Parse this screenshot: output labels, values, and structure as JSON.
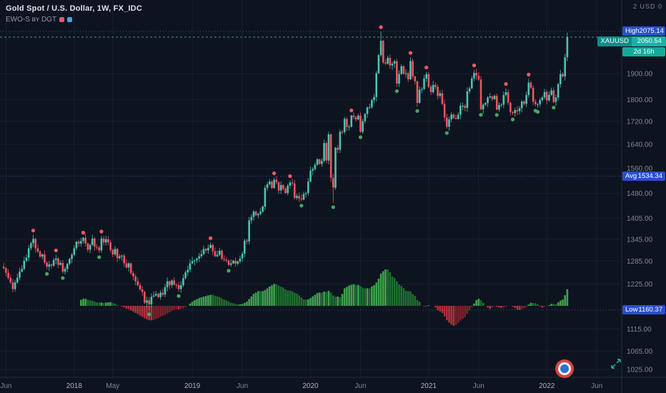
{
  "header": {
    "title": "Gold Spot / U.S. Dollar, 1W, FX_IDC",
    "indicator": "EWO-S ʙʏ DGT",
    "indicator_flags": [
      "#e8556a",
      "#4aa3e0"
    ],
    "top_right": "2  USD 0"
  },
  "colors": {
    "bg": "#0d1420",
    "up": "#4fc2ae",
    "down": "#f0545f",
    "marker_up": "#45a85c",
    "marker_down": "#f55b64",
    "hist_pos": "#3fa24c",
    "hist_pos_dim": "#1f6e31",
    "hist_neg": "#b3303a",
    "hist_neg_dim": "#7c232b",
    "badge_blue": "#2b4ecf",
    "badge_teal": "#17a99c",
    "axis_text": "#7e8694",
    "axis_text_strong": "#a9b0bc",
    "grid": "rgba(151,166,197,0.07)",
    "sep": "rgba(160,172,196,0.16)",
    "level_blue": "rgba(94,120,228,0.55)"
  },
  "axis": {
    "y_ticks": [
      "1900.00",
      "1800.00",
      "1720.00",
      "1640.00",
      "1560.00",
      "1480.00",
      "1405.00",
      "1345.00",
      "1285.00",
      "1225.00",
      "1115.00",
      "1065.00",
      "1025.00"
    ],
    "x_ticks": [
      {
        "label": "Jun",
        "week": 1
      },
      {
        "label": "2018",
        "week": 31
      },
      {
        "label": "May",
        "week": 48
      },
      {
        "label": "2019",
        "week": 83
      },
      {
        "label": "Jun",
        "week": 105
      },
      {
        "label": "2020",
        "week": 135
      },
      {
        "label": "Jun",
        "week": 157
      },
      {
        "label": "2021",
        "week": 187
      },
      {
        "label": "Jun",
        "week": 209
      },
      {
        "label": "2022",
        "week": 239
      },
      {
        "label": "Jun",
        "week": 261
      }
    ],
    "high": {
      "label": "High",
      "value": "2075.14"
    },
    "price": {
      "symbol": "XAUUSD",
      "value": "2050.54"
    },
    "countdown": "2d 16h",
    "avg": {
      "label": "Avg",
      "value": "1534.34"
    },
    "low": {
      "label": "Low",
      "value": "1160.37"
    }
  },
  "chart_data": {
    "type": "candlestick",
    "title": "Gold Spot / U.S. Dollar",
    "symbol": "XAUUSD",
    "timeframe": "1W",
    "source": "FX_IDC",
    "x_range": [
      "Jun 2017",
      "Mar 2022"
    ],
    "ylim": [
      1025,
      2075.14
    ],
    "scale": "log",
    "levels": {
      "high": 2075.14,
      "avg": 1534.34,
      "low": 1160.37,
      "last": 2050.54
    },
    "closes": [
      1266,
      1254,
      1241,
      1229,
      1212,
      1229,
      1241,
      1257,
      1264,
      1286,
      1294,
      1320,
      1334,
      1346,
      1320,
      1311,
      1297,
      1303,
      1281,
      1270,
      1276,
      1273,
      1288,
      1292,
      1275,
      1280,
      1257,
      1264,
      1278,
      1291,
      1302,
      1320,
      1338,
      1333,
      1340,
      1349,
      1333,
      1316,
      1329,
      1347,
      1324,
      1322,
      1314,
      1347,
      1336,
      1345,
      1336,
      1315,
      1303,
      1318,
      1293,
      1298,
      1300,
      1279,
      1268,
      1279,
      1253,
      1245,
      1232,
      1222,
      1211,
      1205,
      1178,
      1184,
      1174,
      1193,
      1196,
      1200,
      1192,
      1203,
      1198,
      1217,
      1232,
      1222,
      1234,
      1223,
      1222,
      1212,
      1222,
      1240,
      1255,
      1262,
      1279,
      1285,
      1287,
      1292,
      1298,
      1304,
      1318,
      1314,
      1321,
      1329,
      1312,
      1298,
      1302,
      1313,
      1291,
      1289,
      1286,
      1275,
      1279,
      1286,
      1278,
      1284,
      1292,
      1305,
      1341,
      1339,
      1399,
      1409,
      1425,
      1414,
      1418,
      1425,
      1440,
      1497,
      1508,
      1517,
      1497,
      1523,
      1515,
      1489,
      1506,
      1494,
      1481,
      1504,
      1514,
      1511,
      1466,
      1472,
      1464,
      1461,
      1478,
      1481,
      1517,
      1552,
      1557,
      1571,
      1589,
      1574,
      1584,
      1644,
      1585,
      1674,
      1529,
      1498,
      1628,
      1621,
      1683,
      1682,
      1729,
      1700,
      1701,
      1741,
      1735,
      1727,
      1741,
      1683,
      1721,
      1747,
      1771,
      1772,
      1798,
      1810,
      1902,
      1975,
      2035,
      1945,
      1940,
      1964,
      1933,
      1940,
      1950,
      1861,
      1899,
      1930,
      1899,
      1902,
      1878,
      1951,
      1889,
      1870,
      1788,
      1838,
      1840,
      1881,
      1898,
      1849,
      1828,
      1856,
      1848,
      1814,
      1824,
      1784,
      1734,
      1701,
      1727,
      1745,
      1732,
      1729,
      1744,
      1777,
      1777,
      1769,
      1831,
      1843,
      1881,
      1903,
      1892,
      1877,
      1764,
      1781,
      1787,
      1808,
      1812,
      1802,
      1814,
      1763,
      1780,
      1781,
      1817,
      1828,
      1788,
      1754,
      1750,
      1761,
      1757,
      1768,
      1793,
      1784,
      1817,
      1865,
      1845,
      1792,
      1783,
      1783,
      1798,
      1808,
      1829,
      1797,
      1818,
      1835,
      1791,
      1808,
      1859,
      1899,
      1889,
      1966,
      2050.54
    ],
    "wick_overrides": {
      "64": {
        "low": 1160.37
      },
      "145": {
        "low": 1451
      },
      "166": {
        "high": 2075.14
      },
      "248": {
        "high": 2070.44
      }
    }
  }
}
